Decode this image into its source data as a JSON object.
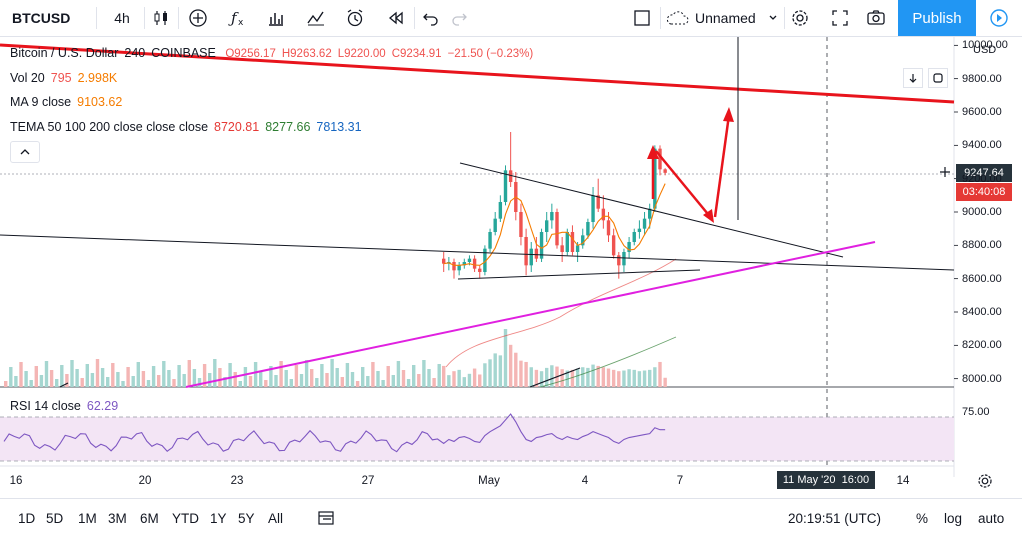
{
  "toolbar": {
    "symbol": "BTCUSD",
    "interval": "4h",
    "layout_name": "Unnamed",
    "publish": "Publish",
    "icons": [
      "candles-icon",
      "add-indicator-icon",
      "fx-icon",
      "bar-chart-icon",
      "line-chart-icon",
      "alarm-icon",
      "replay-icon",
      "undo-icon",
      "redo-icon",
      "layout-icon",
      "cloud-icon",
      "chevron-down-icon",
      "settings-icon",
      "fullscreen-icon",
      "camera-icon",
      "play-icon"
    ]
  },
  "legend": {
    "title": "Bitcoin / U.S. Dollar",
    "interval": "240",
    "exchange": "COINBASE",
    "open": "O9256.17",
    "high": "H9263.62",
    "low": "L9220.00",
    "close": "C9234.91",
    "change": "−21.50 (−0.23%)",
    "vol_label": "Vol 20",
    "vol_v1": "795",
    "vol_v2": "2.998K",
    "ma_label": "MA 9 close",
    "ma_value": "9103.62",
    "tema_label": "TEMA 50 100 200 close close close",
    "tema_v1": "8720.81",
    "tema_v2": "8277.66",
    "tema_v3": "7813.31"
  },
  "rsi": {
    "label": "RSI 14 close",
    "value": "62.29",
    "level": "75.00"
  },
  "price_axis": {
    "currency": "USD",
    "ticks": [
      "10000.00",
      "9800.00",
      "9600.00",
      "9400.00",
      "9200.00",
      "9000.00",
      "8800.00",
      "8600.00",
      "8400.00",
      "8200.00",
      "8000.00"
    ],
    "current_price": "9247.64",
    "countdown": "03:40:08"
  },
  "time_axis": {
    "ticks": [
      "16",
      "20",
      "23",
      "27",
      "May",
      "4",
      "7",
      "14"
    ],
    "crosshair_label": "11 May '20",
    "crosshair_time": "16:00"
  },
  "bottombar": {
    "ranges": [
      "1D",
      "5D",
      "1M",
      "3M",
      "6M",
      "YTD",
      "1Y",
      "5Y",
      "All"
    ],
    "clock": "20:19:51 (UTC)",
    "percent": "%",
    "log": "log",
    "auto": "auto"
  },
  "colors": {
    "up": "#26a69a",
    "down": "#ef5350",
    "red_arrow": "#e8141c",
    "magenta": "#e020e0",
    "rsi_fill": "#f3e5f5",
    "rsi_line": "#7e57c2",
    "accent": "#2196f3"
  },
  "chart_data": {
    "type": "candlestick",
    "xlabel": "",
    "ylabel": "",
    "ylim": [
      7950,
      10050
    ],
    "close_series_note": "",
    "candles": [
      [
        8720,
        8760,
        8640,
        8690
      ],
      [
        8690,
        8730,
        8650,
        8700
      ],
      [
        8700,
        8720,
        8600,
        8650
      ],
      [
        8650,
        8700,
        8620,
        8680
      ],
      [
        8680,
        8720,
        8660,
        8700
      ],
      [
        8700,
        8740,
        8680,
        8720
      ],
      [
        8720,
        8740,
        8640,
        8660
      ],
      [
        8660,
        8680,
        8600,
        8640
      ],
      [
        8640,
        8800,
        8620,
        8780
      ],
      [
        8780,
        8900,
        8760,
        8880
      ],
      [
        8880,
        9000,
        8860,
        8960
      ],
      [
        8960,
        9100,
        8940,
        9060
      ],
      [
        9060,
        9280,
        9040,
        9250
      ],
      [
        9250,
        9480,
        9150,
        9180
      ],
      [
        9180,
        9240,
        8950,
        9000
      ],
      [
        9000,
        9050,
        8800,
        8850
      ],
      [
        8850,
        8900,
        8620,
        8680
      ],
      [
        8680,
        8820,
        8640,
        8780
      ],
      [
        8780,
        8850,
        8700,
        8720
      ],
      [
        8720,
        8900,
        8700,
        8880
      ],
      [
        8880,
        9000,
        8820,
        8950
      ],
      [
        8950,
        9050,
        8900,
        9000
      ],
      [
        9000,
        9020,
        8780,
        8800
      ],
      [
        8800,
        8850,
        8700,
        8760
      ],
      [
        8760,
        8900,
        8740,
        8880
      ],
      [
        8880,
        8920,
        8740,
        8760
      ],
      [
        8760,
        8820,
        8700,
        8800
      ],
      [
        8800,
        8900,
        8780,
        8860
      ],
      [
        8860,
        8960,
        8840,
        8940
      ],
      [
        8940,
        9150,
        8900,
        9100
      ],
      [
        9100,
        9200,
        9000,
        9020
      ],
      [
        9020,
        9100,
        8900,
        8950
      ],
      [
        8950,
        9000,
        8820,
        8860
      ],
      [
        8860,
        8900,
        8720,
        8740
      ],
      [
        8740,
        8760,
        8600,
        8680
      ],
      [
        8680,
        8780,
        8640,
        8760
      ],
      [
        8760,
        8850,
        8720,
        8820
      ],
      [
        8820,
        8900,
        8800,
        8880
      ],
      [
        8880,
        8950,
        8840,
        8900
      ],
      [
        8900,
        9000,
        8860,
        8960
      ],
      [
        8960,
        9050,
        8900,
        9020
      ],
      [
        9020,
        9400,
        9000,
        9380
      ],
      [
        9380,
        9400,
        9220,
        9256
      ],
      [
        9256,
        9263,
        9220,
        9235
      ]
    ],
    "volume": [
      320,
      180,
      240,
      260,
      150,
      200,
      280,
      190,
      360,
      420,
      510,
      480,
      880,
      640,
      520,
      400,
      380,
      300,
      260,
      240,
      290,
      330,
      310,
      270,
      250,
      260,
      280,
      300,
      290,
      340,
      320,
      300,
      280,
      260,
      240,
      250,
      270,
      260,
      240,
      250,
      260,
      300,
      380,
      140
    ],
    "rsi_values": [
      48,
      52,
      50,
      54,
      55,
      53,
      50,
      49,
      56,
      60,
      63,
      66,
      72,
      78,
      70,
      60,
      52,
      50,
      54,
      55,
      57,
      58,
      54,
      52,
      55,
      53,
      52,
      55,
      57,
      60,
      58,
      56,
      54,
      50,
      48,
      52,
      54,
      55,
      56,
      57,
      58,
      64,
      62,
      62
    ]
  }
}
